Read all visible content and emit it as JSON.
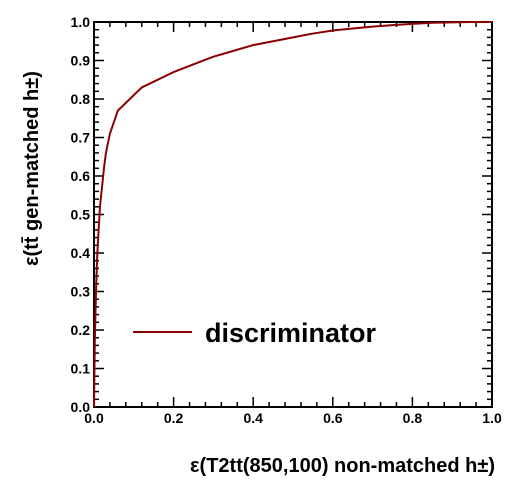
{
  "chart_data": {
    "type": "line",
    "xlabel": "ε(T2tt(850,100) non-matched h±)",
    "ylabel": "ε(tt̄ gen-matched h±)",
    "xlim": [
      0,
      1
    ],
    "ylim": [
      0,
      1
    ],
    "x_ticks": [
      "0.0",
      "0.2",
      "0.4",
      "0.6",
      "0.8",
      "1.0"
    ],
    "y_ticks": [
      "0.0",
      "0.1",
      "0.2",
      "0.3",
      "0.4",
      "0.5",
      "0.6",
      "0.7",
      "0.8",
      "0.9",
      "1.0"
    ],
    "grid": false,
    "legend": "center",
    "series": [
      {
        "name": "discriminator",
        "color": "#8b0000",
        "x": [
          0,
          0.002,
          0.004,
          0.006,
          0.008,
          0.01,
          0.015,
          0.02,
          0.025,
          0.03,
          0.04,
          0.05,
          0.06,
          0.08,
          0.1,
          0.12,
          0.15,
          0.2,
          0.25,
          0.3,
          0.35,
          0.4,
          0.45,
          0.5,
          0.55,
          0.6,
          0.65,
          0.7,
          0.75,
          0.8,
          0.85,
          0.9,
          0.95,
          1.0
        ],
        "y": [
          0,
          0.17,
          0.26,
          0.33,
          0.39,
          0.43,
          0.52,
          0.57,
          0.62,
          0.66,
          0.71,
          0.74,
          0.77,
          0.79,
          0.81,
          0.83,
          0.845,
          0.87,
          0.89,
          0.91,
          0.925,
          0.94,
          0.95,
          0.96,
          0.97,
          0.978,
          0.983,
          0.988,
          0.992,
          0.995,
          0.998,
          0.999,
          1.0,
          1.0
        ]
      }
    ]
  }
}
